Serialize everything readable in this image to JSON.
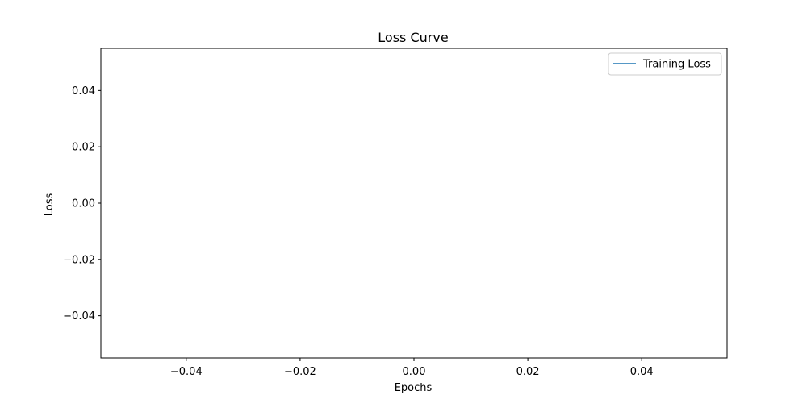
{
  "chart_data": {
    "type": "line",
    "title": "Loss Curve",
    "xlabel": "Epochs",
    "ylabel": "Loss",
    "xlim": [
      -0.055,
      0.055
    ],
    "ylim": [
      -0.055,
      0.055
    ],
    "xticks": [
      -0.04,
      -0.02,
      0.0,
      0.02,
      0.04
    ],
    "xtick_labels": [
      "−0.04",
      "−0.02",
      "0.00",
      "0.02",
      "0.04"
    ],
    "yticks": [
      0.04,
      0.02,
      0.0,
      -0.02,
      -0.04
    ],
    "ytick_labels": [
      "0.04",
      "0.02",
      "0.00",
      "−0.02",
      "−0.04"
    ],
    "grid": false,
    "legend_position": "top-right",
    "series": [
      {
        "name": "Training Loss",
        "color": "#1f77b4",
        "x": [],
        "y": []
      }
    ]
  }
}
